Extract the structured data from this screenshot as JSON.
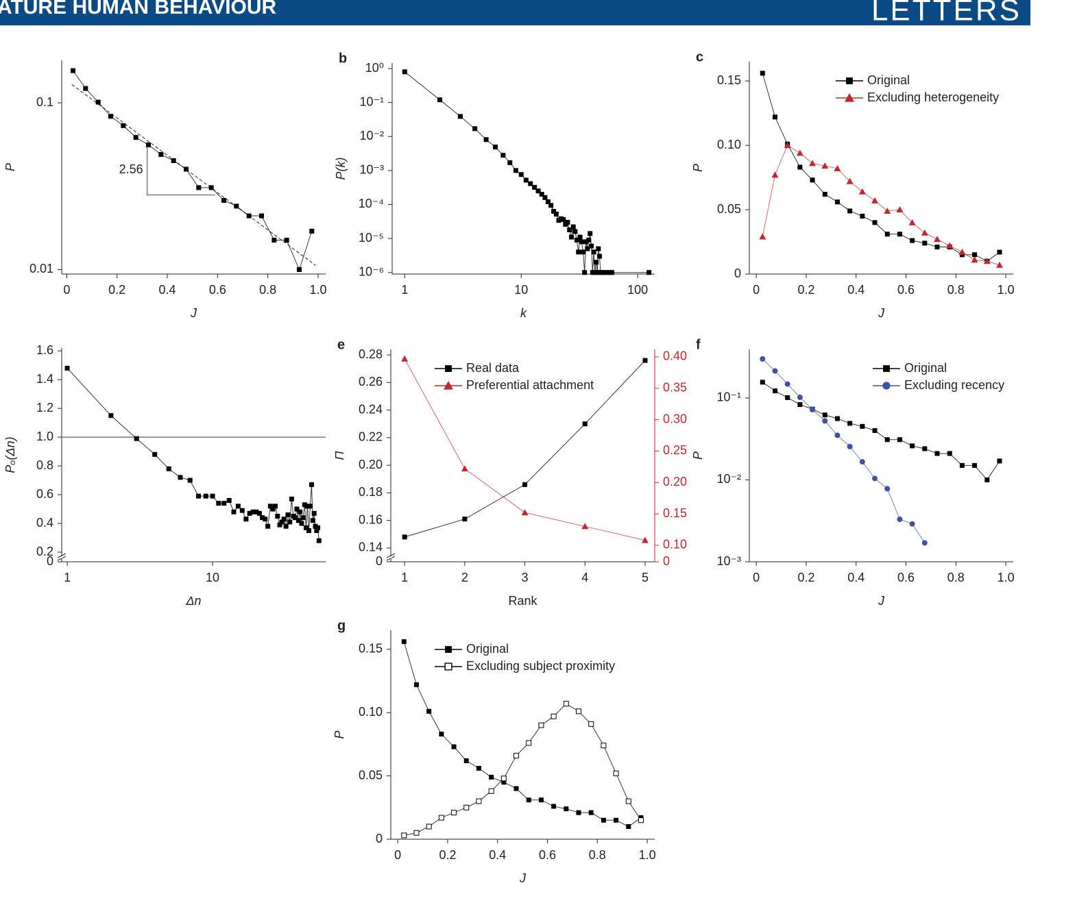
{
  "header": {
    "journal": "ATURE HUMAN BEHAVIOUR",
    "section": "LETTERS"
  },
  "chart_data": [
    {
      "type": "line",
      "xlabel": "J",
      "ylabel": "P",
      "ylog": true,
      "x": [
        0.025,
        0.075,
        0.125,
        0.175,
        0.225,
        0.275,
        0.325,
        0.375,
        0.425,
        0.475,
        0.525,
        0.575,
        0.625,
        0.675,
        0.725,
        0.775,
        0.825,
        0.875,
        0.925,
        0.975
      ],
      "values": [
        0.156,
        0.122,
        0.101,
        0.083,
        0.073,
        0.062,
        0.056,
        0.049,
        0.045,
        0.04,
        0.031,
        0.031,
        0.026,
        0.024,
        0.021,
        0.021,
        0.015,
        0.015,
        0.01,
        0.017
      ],
      "color": "#000000",
      "marker": "square",
      "fit": {
        "x": [
          0.02,
          0.99
        ],
        "values": [
          0.129,
          0.0106
        ]
      },
      "triangle": {
        "x": [
          0.32,
          0.32,
          0.59
        ],
        "values": [
          0.056,
          0.028,
          0.028
        ],
        "label": "2.56"
      },
      "xlim": [
        -0.02,
        1.03
      ],
      "ylim": [
        0.0094,
        0.18
      ],
      "xticks": [
        0,
        0.2,
        0.4,
        0.6,
        0.8,
        {
          "value": 1,
          "label": "1.0"
        }
      ],
      "yticks": [
        0.1,
        0.01
      ]
    },
    {
      "type": "line",
      "panel": "b",
      "xlabel": "k",
      "ylabel": "P(k)",
      "xlog": true,
      "ylog": true,
      "x": [
        1,
        2,
        3,
        4,
        5,
        6,
        7,
        8,
        9,
        10,
        11,
        12,
        13,
        14,
        15,
        16,
        17,
        18,
        19,
        20,
        21,
        22,
        23,
        24,
        25,
        26,
        27,
        28,
        29,
        30,
        31,
        32,
        33,
        34,
        35,
        36,
        37,
        38,
        39,
        40,
        41,
        42,
        43,
        44,
        45,
        46,
        47,
        48,
        50,
        52,
        55,
        58,
        60,
        125
      ],
      "values": [
        0.8,
        0.12,
        0.039,
        0.017,
        0.0081,
        0.0049,
        0.0028,
        0.0017,
        0.001,
        0.00076,
        0.00052,
        0.00041,
        0.00032,
        0.00025,
        0.0002,
        0.00016,
        0.00012,
        9.4e-05,
        6.3e-05,
        5.2e-05,
        3.4e-05,
        3.8e-05,
        3.6e-05,
        2.6e-05,
        3e-05,
        1.8e-05,
        1.1e-05,
        2.2e-05,
        1.6e-05,
        9e-06,
        4e-06,
        1.1e-05,
        8e-06,
        4e-06,
        1e-06,
        8e-06,
        5e-06,
        9e-06,
        1.4e-05,
        6e-06,
        1e-06,
        4e-06,
        1e-06,
        2e-06,
        1e-06,
        5e-06,
        3e-06,
        1e-06,
        1e-06,
        1e-06,
        1e-06,
        1e-06,
        1e-06,
        1e-06
      ],
      "color": "#000000",
      "marker": "square",
      "xlim": [
        0.78,
        140
      ],
      "ylim": [
        9e-07,
        1.45
      ],
      "xticks": [
        1,
        10,
        100
      ],
      "yticks": [
        {
          "value": 1,
          "label": "10⁰"
        },
        {
          "value": 0.1,
          "label": "10⁻¹"
        },
        {
          "value": 0.01,
          "label": "10⁻²"
        },
        {
          "value": 0.001,
          "label": "10⁻³"
        },
        {
          "value": 0.0001,
          "label": "10⁻⁴"
        },
        {
          "value": 1e-05,
          "label": "10⁻⁵"
        },
        {
          "value": 1e-06,
          "label": "10⁻⁶"
        }
      ]
    },
    {
      "type": "line",
      "panel": "c",
      "xlabel": "J",
      "ylabel": "P",
      "legend": "upper right",
      "x": [
        0.025,
        0.075,
        0.125,
        0.175,
        0.225,
        0.275,
        0.325,
        0.375,
        0.425,
        0.475,
        0.525,
        0.575,
        0.625,
        0.675,
        0.725,
        0.775,
        0.825,
        0.875,
        0.925,
        0.975
      ],
      "series": [
        {
          "name": "Original",
          "color": "#000000",
          "marker": "square",
          "values": [
            0.156,
            0.122,
            0.101,
            0.083,
            0.073,
            0.062,
            0.056,
            0.049,
            0.045,
            0.04,
            0.031,
            0.031,
            0.026,
            0.024,
            0.021,
            0.021,
            0.015,
            0.015,
            0.01,
            0.017
          ]
        },
        {
          "name": "Excluding heterogeneity",
          "color": "#c1272d",
          "marker": "triangle",
          "values": [
            0.029,
            0.077,
            0.1,
            0.094,
            0.086,
            0.084,
            0.082,
            0.072,
            0.064,
            0.057,
            0.049,
            0.05,
            0.04,
            0.032,
            0.027,
            0.022,
            0.017,
            0.011,
            0.01,
            0.007
          ]
        }
      ],
      "xlim": [
        -0.028,
        1.03
      ],
      "ylim": [
        0,
        0.165
      ],
      "xticks": [
        0,
        0.2,
        0.4,
        0.6,
        0.8,
        {
          "value": 1,
          "label": "1.0"
        }
      ],
      "yticks": [
        0,
        0.05,
        {
          "value": 0.1,
          "label": "0.10"
        },
        0.15
      ]
    },
    {
      "type": "line",
      "xlabel": "Δn",
      "ylabel": "Pₒ(Δn)",
      "xlog": true,
      "axis_break": true,
      "hline": {
        "value": 1,
        "color": "#777777"
      },
      "x": [
        1,
        2,
        3,
        4,
        5,
        6,
        7,
        8,
        9,
        10,
        11,
        12,
        13,
        14,
        15,
        16,
        17,
        18,
        19,
        20,
        21,
        22,
        23,
        24,
        25,
        26,
        27,
        28,
        29,
        30,
        31,
        32,
        33,
        34,
        35,
        36,
        37,
        38,
        39,
        40,
        41,
        42,
        43,
        44,
        45,
        46,
        47,
        48,
        49,
        50,
        51,
        52,
        53,
        54
      ],
      "values": [
        1.48,
        1.15,
        0.99,
        0.88,
        0.78,
        0.72,
        0.7,
        0.59,
        0.59,
        0.59,
        0.54,
        0.54,
        0.56,
        0.48,
        0.52,
        0.49,
        0.43,
        0.47,
        0.48,
        0.48,
        0.47,
        0.44,
        0.43,
        0.38,
        0.52,
        0.5,
        0.52,
        0.45,
        0.39,
        0.41,
        0.43,
        0.38,
        0.46,
        0.41,
        0.57,
        0.45,
        0.44,
        0.5,
        0.42,
        0.48,
        0.4,
        0.44,
        0.53,
        0.37,
        0.52,
        0.35,
        0.52,
        0.67,
        0.42,
        0.47,
        0.38,
        0.35,
        0.37,
        0.28
      ],
      "color": "#000000",
      "marker": "square",
      "xlim": [
        0.916,
        60
      ],
      "ylim": [
        0.2,
        1.62
      ],
      "xticks": [
        1,
        10
      ],
      "yticks": [
        0,
        0.2,
        0.4,
        0.6,
        0.8,
        {
          "value": 1,
          "label": "1.0"
        },
        1.2,
        1.4,
        1.6
      ]
    },
    {
      "type": "line",
      "panel": "e",
      "xlabel": "Rank",
      "ylabel": "Π",
      "axis_break": true,
      "legend": "upper left",
      "x": [
        1,
        2,
        3,
        4,
        5
      ],
      "series": [
        {
          "name": "Real data",
          "color": "#000000",
          "marker": "square",
          "values": [
            0.148,
            0.161,
            0.186,
            0.23,
            0.276
          ]
        },
        {
          "name": "Preferential attachment",
          "color": "#c1272d",
          "marker": "triangle",
          "axis": "y2",
          "values": [
            0.397,
            0.222,
            0.152,
            0.13,
            0.108
          ]
        }
      ],
      "xlim": [
        0.77,
        5.16
      ],
      "ylim": [
        0.137,
        0.284
      ],
      "y2lim": [
        0.089,
        0.412
      ],
      "y2color": "#c1272d",
      "xticks": [
        1,
        2,
        3,
        4,
        5
      ],
      "yticks": [
        0,
        0.14,
        0.16,
        0.18,
        {
          "value": 0.2,
          "label": "0.20"
        },
        0.22,
        0.24,
        0.26,
        0.28
      ],
      "y2ticks": [
        0,
        {
          "value": 0.1,
          "label": "0.10"
        },
        0.15,
        {
          "value": 0.2,
          "label": "0.20"
        },
        0.25,
        {
          "value": 0.3,
          "label": "0.30"
        },
        0.35,
        {
          "value": 0.4,
          "label": "0.40"
        }
      ]
    },
    {
      "type": "line",
      "panel": "f",
      "xlabel": "J",
      "ylabel": "P",
      "ylog": true,
      "legend": "upper right",
      "x": [
        0.025,
        0.075,
        0.125,
        0.175,
        0.225,
        0.275,
        0.325,
        0.375,
        0.425,
        0.475,
        0.525,
        0.575,
        0.625,
        0.675,
        0.725,
        0.775,
        0.825,
        0.875,
        0.925,
        0.975
      ],
      "series": [
        {
          "name": "Original",
          "color": "#000000",
          "marker": "square",
          "values": [
            0.156,
            0.122,
            0.101,
            0.083,
            0.073,
            0.062,
            0.056,
            0.049,
            0.045,
            0.04,
            0.031,
            0.031,
            0.026,
            0.024,
            0.021,
            0.021,
            0.015,
            0.015,
            0.01,
            0.017
          ]
        },
        {
          "name": "Excluding recency",
          "color": "#3f51a3",
          "marker": "circle",
          "values": [
            0.3,
            0.214,
            0.148,
            0.102,
            0.072,
            0.0525,
            0.035,
            0.0255,
            0.0166,
            0.0104,
            0.0078,
            0.0033,
            0.0029,
            0.0017,
            null,
            null,
            null,
            null,
            null,
            null
          ]
        }
      ],
      "xlim": [
        -0.028,
        1.03
      ],
      "ylim": [
        0.001,
        0.392
      ],
      "xticks": [
        0,
        0.2,
        0.4,
        0.6,
        0.8,
        {
          "value": 1,
          "label": "1.0"
        }
      ],
      "yticks": [
        {
          "value": 0.1,
          "label": "10⁻¹"
        },
        {
          "value": 0.01,
          "label": "10⁻²"
        },
        {
          "value": 0.001,
          "label": "10⁻³"
        }
      ]
    },
    {
      "type": "line",
      "panel": "g",
      "xlabel": "J",
      "ylabel": "P",
      "legend": "upper left",
      "x": [
        0.025,
        0.075,
        0.125,
        0.175,
        0.225,
        0.275,
        0.325,
        0.375,
        0.425,
        0.475,
        0.525,
        0.575,
        0.625,
        0.675,
        0.725,
        0.775,
        0.825,
        0.875,
        0.925,
        0.975
      ],
      "series": [
        {
          "name": "Original",
          "color": "#000000",
          "marker": "square",
          "values": [
            0.156,
            0.122,
            0.101,
            0.083,
            0.073,
            0.062,
            0.056,
            0.049,
            0.045,
            0.04,
            0.031,
            0.031,
            0.026,
            0.024,
            0.021,
            0.021,
            0.015,
            0.015,
            0.01,
            0.017
          ]
        },
        {
          "name": "Excluding subject proximity",
          "color": "#000000",
          "marker": "open-square",
          "values": [
            0.003,
            0.005,
            0.01,
            0.017,
            0.021,
            0.025,
            0.03,
            0.038,
            0.048,
            0.066,
            0.076,
            0.09,
            0.097,
            0.107,
            0.101,
            0.091,
            0.074,
            0.052,
            0.03,
            0.015
          ]
        }
      ],
      "xlim": [
        -0.028,
        1.03
      ],
      "ylim": [
        0,
        0.165
      ],
      "xticks": [
        0,
        0.2,
        0.4,
        0.6,
        0.8,
        {
          "value": 1,
          "label": "1.0"
        }
      ],
      "yticks": [
        0,
        0.05,
        {
          "value": 0.1,
          "label": "0.10"
        },
        0.15
      ]
    }
  ]
}
